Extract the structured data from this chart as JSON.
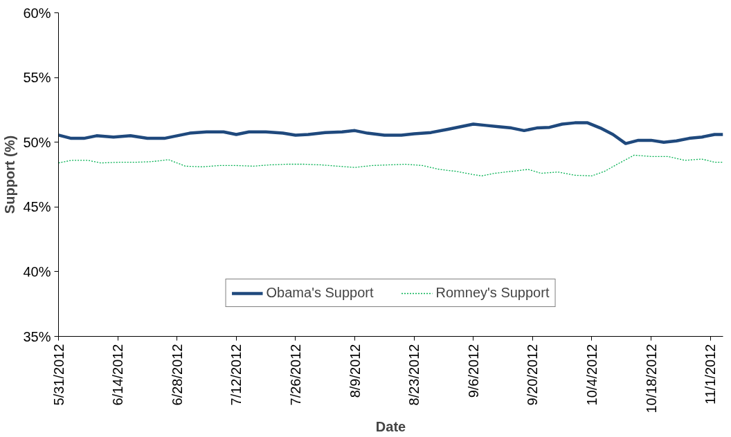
{
  "chart_data": {
    "type": "line",
    "xlabel": "Date",
    "ylabel": "Support (%)",
    "xlim": [
      "2012-05-31",
      "2012-11-04"
    ],
    "xticks": [
      {
        "value": "2012-05-31",
        "label": "5/31/2012"
      },
      {
        "value": "2012-06-14",
        "label": "6/14/2012"
      },
      {
        "value": "2012-06-28",
        "label": "6/28/2012"
      },
      {
        "value": "2012-07-12",
        "label": "7/12/2012"
      },
      {
        "value": "2012-07-26",
        "label": "7/26/2012"
      },
      {
        "value": "2012-08-09",
        "label": "8/9/2012"
      },
      {
        "value": "2012-08-23",
        "label": "8/23/2012"
      },
      {
        "value": "2012-09-06",
        "label": "9/6/2012"
      },
      {
        "value": "2012-09-20",
        "label": "9/20/2012"
      },
      {
        "value": "2012-10-04",
        "label": "10/4/2012"
      },
      {
        "value": "2012-10-18",
        "label": "10/18/2012"
      },
      {
        "value": "2012-11-01",
        "label": "11/1/2012"
      }
    ],
    "ylim": [
      35,
      60
    ],
    "yticks": [
      {
        "value": 35,
        "label": "35%"
      },
      {
        "value": 40,
        "label": "40%"
      },
      {
        "value": 45,
        "label": "45%"
      },
      {
        "value": 50,
        "label": "50%"
      },
      {
        "value": 55,
        "label": "55%"
      },
      {
        "value": 60,
        "label": "60%"
      }
    ],
    "grid": false,
    "legend": "bottom",
    "marker": "none",
    "series": [
      {
        "name": "Obama's Support",
        "color": "#1f497d",
        "line_style": "solid",
        "x": [
          "2012-05-31",
          "2012-06-03",
          "2012-06-06",
          "2012-06-09",
          "2012-06-13",
          "2012-06-17",
          "2012-06-21",
          "2012-06-25",
          "2012-06-28",
          "2012-07-01",
          "2012-07-05",
          "2012-07-09",
          "2012-07-12",
          "2012-07-15",
          "2012-07-19",
          "2012-07-23",
          "2012-07-26",
          "2012-07-29",
          "2012-08-02",
          "2012-08-06",
          "2012-08-09",
          "2012-08-12",
          "2012-08-16",
          "2012-08-20",
          "2012-08-23",
          "2012-08-27",
          "2012-08-31",
          "2012-09-03",
          "2012-09-06",
          "2012-09-09",
          "2012-09-12",
          "2012-09-15",
          "2012-09-18",
          "2012-09-21",
          "2012-09-24",
          "2012-09-27",
          "2012-09-30",
          "2012-10-03",
          "2012-10-06",
          "2012-10-09",
          "2012-10-12",
          "2012-10-15",
          "2012-10-18",
          "2012-10-21",
          "2012-10-24",
          "2012-10-27",
          "2012-10-30",
          "2012-11-02",
          "2012-11-04"
        ],
        "values": [
          50.55,
          50.3,
          50.3,
          50.5,
          50.4,
          50.5,
          50.3,
          50.3,
          50.5,
          50.7,
          50.8,
          50.8,
          50.6,
          50.8,
          50.8,
          50.7,
          50.55,
          50.6,
          50.75,
          50.8,
          50.9,
          50.7,
          50.55,
          50.55,
          50.65,
          50.75,
          51.0,
          51.2,
          51.4,
          51.3,
          51.2,
          51.1,
          50.9,
          51.1,
          51.15,
          51.4,
          51.5,
          51.5,
          51.1,
          50.6,
          49.9,
          50.15,
          50.15,
          50.0,
          50.1,
          50.3,
          50.4,
          50.6,
          50.6
        ]
      },
      {
        "name": "Romney's Support",
        "color": "#00b050",
        "line_style": "dotted",
        "x": [
          "2012-05-31",
          "2012-06-03",
          "2012-06-07",
          "2012-06-10",
          "2012-06-14",
          "2012-06-18",
          "2012-06-22",
          "2012-06-26",
          "2012-06-30",
          "2012-07-04",
          "2012-07-08",
          "2012-07-12",
          "2012-07-16",
          "2012-07-20",
          "2012-07-24",
          "2012-07-28",
          "2012-08-01",
          "2012-08-05",
          "2012-08-09",
          "2012-08-13",
          "2012-08-17",
          "2012-08-21",
          "2012-08-25",
          "2012-08-29",
          "2012-09-02",
          "2012-09-06",
          "2012-09-08",
          "2012-09-11",
          "2012-09-15",
          "2012-09-19",
          "2012-09-22",
          "2012-09-26",
          "2012-09-30",
          "2012-10-04",
          "2012-10-07",
          "2012-10-10",
          "2012-10-14",
          "2012-10-18",
          "2012-10-22",
          "2012-10-26",
          "2012-10-30",
          "2012-11-02",
          "2012-11-04"
        ],
        "values": [
          48.4,
          48.6,
          48.6,
          48.4,
          48.45,
          48.45,
          48.5,
          48.65,
          48.15,
          48.1,
          48.2,
          48.2,
          48.15,
          48.25,
          48.3,
          48.3,
          48.25,
          48.15,
          48.05,
          48.2,
          48.25,
          48.3,
          48.2,
          47.9,
          47.75,
          47.5,
          47.4,
          47.6,
          47.75,
          47.9,
          47.6,
          47.7,
          47.45,
          47.4,
          47.75,
          48.3,
          49.0,
          48.9,
          48.9,
          48.6,
          48.7,
          48.45,
          48.45
        ]
      }
    ]
  }
}
